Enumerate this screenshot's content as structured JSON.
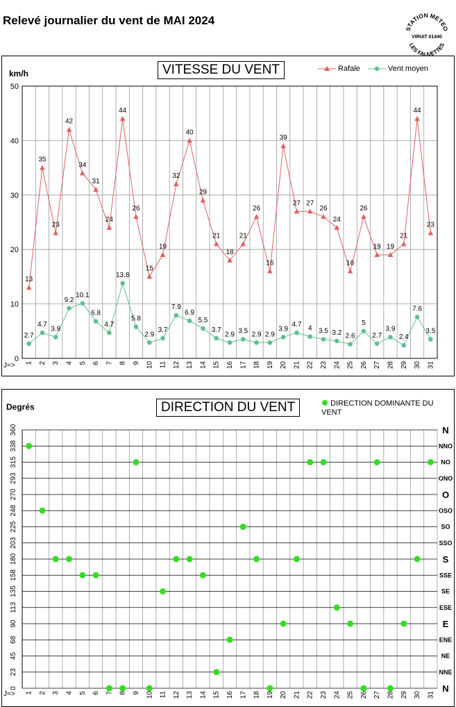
{
  "page_title": "Relevé journalier du vent de MAI 2024",
  "stamp": {
    "line1": "STATION METEO",
    "line2": "VIRIAT 01440",
    "line3": "LES FAUVETTES"
  },
  "colors": {
    "rafale": "#e06060",
    "vent_moyen": "#60c090",
    "direction": "#33dd22",
    "grid": "#999999"
  },
  "chart_data": [
    {
      "type": "line",
      "title": "VITESSE DU VENT",
      "ylabel": "km/h",
      "xlabel": "J=>",
      "ylim": [
        0,
        50
      ],
      "yticks": [
        0,
        10,
        20,
        30,
        40,
        50
      ],
      "grid": true,
      "legend_position": "top-right",
      "x": [
        1,
        2,
        3,
        4,
        5,
        6,
        7,
        8,
        9,
        10,
        11,
        12,
        13,
        14,
        15,
        16,
        17,
        18,
        19,
        20,
        21,
        22,
        23,
        24,
        25,
        26,
        27,
        28,
        29,
        30,
        31
      ],
      "series": [
        {
          "name": "Rafale",
          "values": [
            13,
            35,
            23,
            42,
            34,
            31,
            24,
            44,
            26,
            15,
            19,
            32,
            40,
            29,
            21,
            18,
            21,
            26,
            16,
            39,
            27,
            27,
            26,
            24,
            16,
            26,
            19,
            19,
            21,
            44,
            23
          ],
          "labels": [
            "13",
            "35",
            "23",
            "42",
            "34",
            "31",
            "24",
            "44",
            "26",
            "15",
            "19",
            "32",
            "40",
            "29",
            "21",
            "18",
            "21",
            "26",
            "16",
            "39",
            "27",
            "27",
            "26",
            "24",
            "16",
            "26",
            "19",
            "19",
            "21",
            "44",
            "23"
          ]
        },
        {
          "name": "Vent moyen",
          "values": [
            2.7,
            4.7,
            3.9,
            9.2,
            10.1,
            6.8,
            4.7,
            13.8,
            5.8,
            2.9,
            3.7,
            7.9,
            6.9,
            5.5,
            3.7,
            2.9,
            3.5,
            2.9,
            2.9,
            3.9,
            4.7,
            4,
            3.5,
            3.2,
            2.6,
            5,
            2.7,
            3.9,
            2.4,
            7.6,
            3.5
          ],
          "labels": [
            "2.7",
            "4.7",
            "3.9",
            "9.2",
            "10.1",
            "6.8",
            "4.7",
            "13.8",
            "5.8",
            "2.9",
            "3.7",
            "7.9",
            "6.9",
            "5.5",
            "3.7",
            "2.9",
            "3.5",
            "2.9",
            "2.9",
            "3.9",
            "4.7",
            "4",
            "3.5",
            "3.2",
            "2.6",
            "5",
            "2.7",
            "3.9",
            "2.4",
            "7.6",
            "3.5"
          ]
        }
      ]
    },
    {
      "type": "scatter",
      "title": "DIRECTION DU VENT",
      "ylabel": "Degrés",
      "xlabel": "J=>",
      "ylim": [
        0,
        360
      ],
      "grid": true,
      "legend_position": "top-right",
      "yticks": [
        "0",
        "23",
        "45",
        "68",
        "90",
        "113",
        "135",
        "158",
        "180",
        "203",
        "225",
        "248",
        "270",
        "293",
        "315",
        "338",
        "360"
      ],
      "compass": [
        "N",
        "NNE",
        "NE",
        "ENE",
        "E",
        "ESE",
        "SE",
        "SSE",
        "S",
        "SSO",
        "SO",
        "OSO",
        "O",
        "ONO",
        "NO",
        "NNO",
        "N"
      ],
      "x": [
        1,
        2,
        3,
        4,
        5,
        6,
        7,
        8,
        9,
        10,
        11,
        12,
        13,
        14,
        15,
        16,
        17,
        18,
        19,
        20,
        21,
        22,
        23,
        24,
        25,
        26,
        27,
        28,
        29,
        30,
        31
      ],
      "series": [
        {
          "name": "DIRECTION DOMINANTE DU VENT",
          "values": [
            337.5,
            247.5,
            180,
            180,
            157.5,
            157.5,
            0,
            0,
            315,
            0,
            135,
            180,
            180,
            157.5,
            22.5,
            67.5,
            225,
            180,
            0,
            90,
            180,
            315,
            315,
            112.5,
            90,
            0,
            315,
            0,
            90,
            180,
            315
          ]
        }
      ]
    }
  ]
}
